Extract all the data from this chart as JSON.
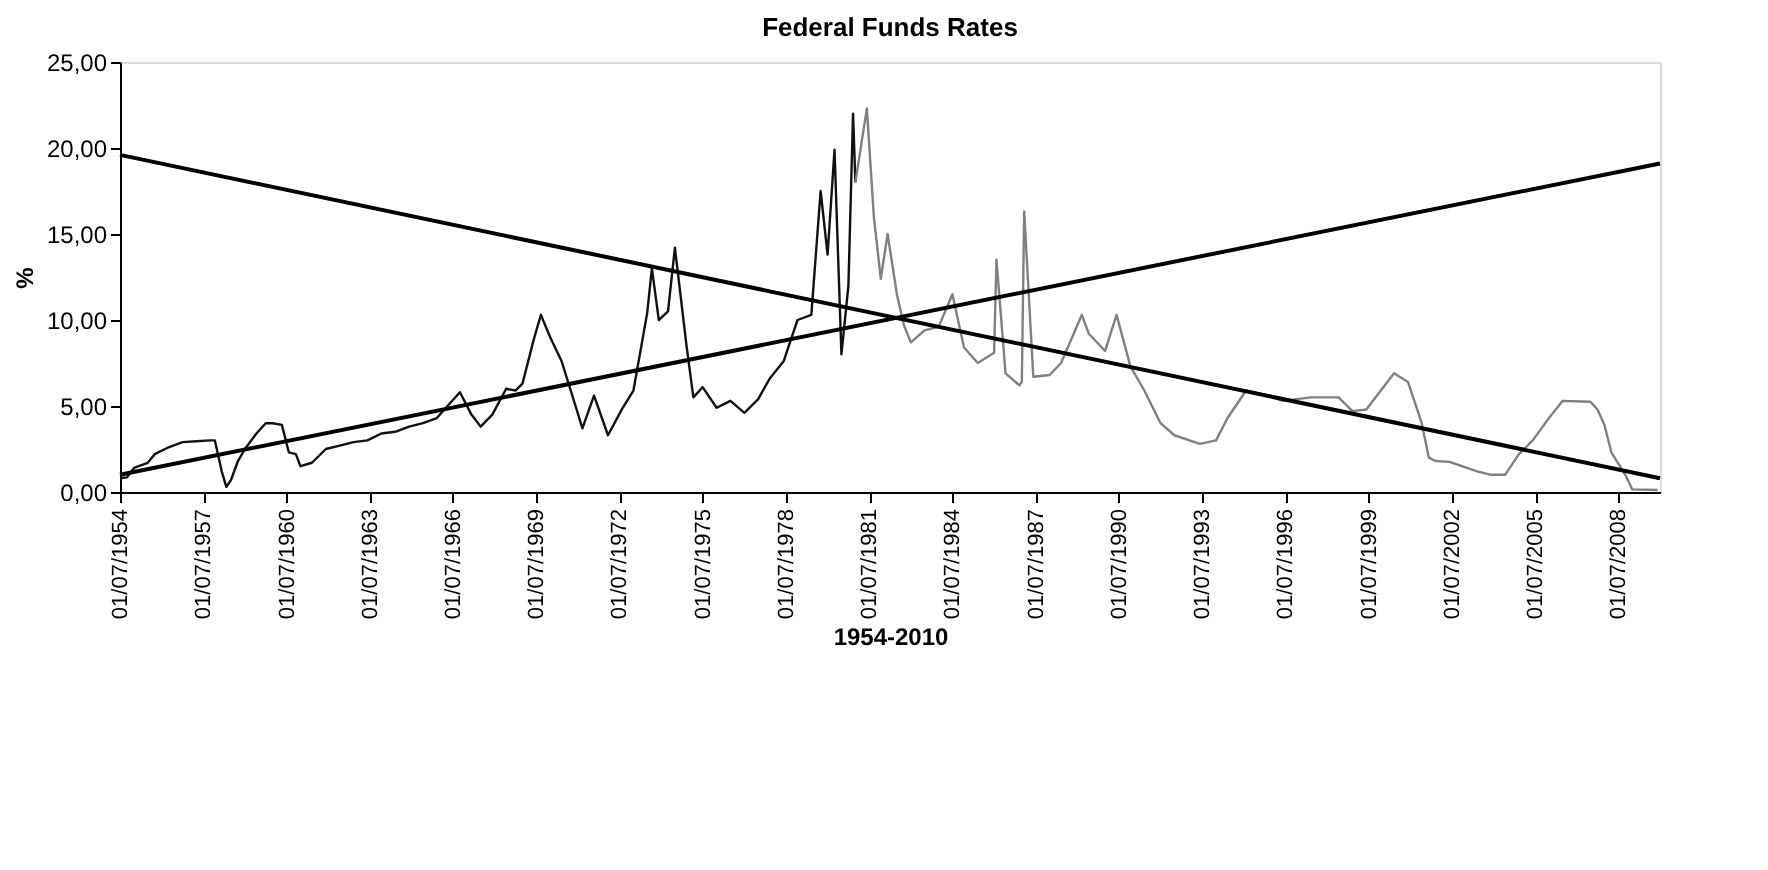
{
  "chart_data": {
    "type": "line",
    "title": "Federal Funds Rates",
    "xlabel": "1954-2010",
    "ylabel": "%",
    "xlim": [
      "1954-07-01",
      "2010-01-01"
    ],
    "xticks": [
      {
        "value": "1954-07-01",
        "label": "01/07/1954"
      },
      {
        "value": "1957-07-01",
        "label": "01/07/1957"
      },
      {
        "value": "1960-07-01",
        "label": "01/07/1960"
      },
      {
        "value": "1963-07-01",
        "label": "01/07/1963"
      },
      {
        "value": "1966-07-01",
        "label": "01/07/1966"
      },
      {
        "value": "1969-07-01",
        "label": "01/07/1969"
      },
      {
        "value": "1972-07-01",
        "label": "01/07/1972"
      },
      {
        "value": "1975-07-01",
        "label": "01/07/1975"
      },
      {
        "value": "1978-07-01",
        "label": "01/07/1978"
      },
      {
        "value": "1981-07-01",
        "label": "01/07/1981"
      },
      {
        "value": "1984-07-01",
        "label": "01/07/1984"
      },
      {
        "value": "1987-07-01",
        "label": "01/07/1987"
      },
      {
        "value": "1990-07-01",
        "label": "01/07/1990"
      },
      {
        "value": "1993-07-01",
        "label": "01/07/1993"
      },
      {
        "value": "1996-07-01",
        "label": "01/07/1996"
      },
      {
        "value": "1999-07-01",
        "label": "01/07/1999"
      },
      {
        "value": "2002-07-01",
        "label": "01/07/2002"
      },
      {
        "value": "2005-07-01",
        "label": "01/07/2005"
      },
      {
        "value": "2008-07-01",
        "label": "01/07/2008"
      }
    ],
    "ylim": [
      0,
      25
    ],
    "yticks": [
      {
        "value": 0,
        "label": "0,00"
      },
      {
        "value": 5,
        "label": "5,00"
      },
      {
        "value": 10,
        "label": "10,00"
      },
      {
        "value": 15,
        "label": "15,00"
      },
      {
        "value": 20,
        "label": "20,00"
      },
      {
        "value": 25,
        "label": "25,00"
      }
    ],
    "grid": false,
    "marker": "none",
    "line_style": "solid",
    "series": [
      {
        "color": "#111111",
        "x": [
          "1954-07-01",
          "1954-10-01",
          "1955-01-01",
          "1955-07-01",
          "1955-10-01",
          "1956-04-01",
          "1956-10-01",
          "1957-04-01",
          "1957-10-01",
          "1957-12-01",
          "1958-03-01",
          "1958-05-01",
          "1958-07-01",
          "1958-10-01",
          "1959-01-01",
          "1959-06-01",
          "1959-10-01",
          "1960-01-01",
          "1960-05-01",
          "1960-08-01",
          "1960-11-01",
          "1961-01-01",
          "1961-06-01",
          "1961-12-01",
          "1962-06-01",
          "1962-12-01",
          "1963-06-01",
          "1963-12-01",
          "1964-06-01",
          "1964-12-01",
          "1965-06-01",
          "1965-12-01",
          "1966-06-01",
          "1966-10-01",
          "1967-03-01",
          "1967-07-01",
          "1967-12-01",
          "1968-06-01",
          "1968-10-01",
          "1969-01-01",
          "1969-06-01",
          "1969-09-01",
          "1970-01-01",
          "1970-06-01",
          "1970-12-01",
          "1971-03-01",
          "1971-08-01",
          "1972-02-01",
          "1972-08-01",
          "1973-01-01",
          "1973-07-01",
          "1973-09-01",
          "1973-12-01",
          "1974-04-01",
          "1974-07-01",
          "1974-12-01",
          "1975-03-01",
          "1975-07-01",
          "1976-01-01",
          "1976-07-01",
          "1977-01-01",
          "1977-07-01",
          "1977-12-01",
          "1978-06-01",
          "1978-12-01",
          "1979-06-01",
          "1979-10-01",
          "1980-01-01",
          "1980-04-01",
          "1980-07-01",
          "1980-10-01",
          "1980-12-01",
          "1981-01-01"
        ],
        "values": [
          0.8,
          0.85,
          1.4,
          1.7,
          2.2,
          2.6,
          2.9,
          2.95,
          3.0,
          3.0,
          1.2,
          0.3,
          0.7,
          1.8,
          2.5,
          3.4,
          4.0,
          4.0,
          3.9,
          2.3,
          2.2,
          1.5,
          1.7,
          2.5,
          2.7,
          2.9,
          3.0,
          3.4,
          3.5,
          3.8,
          4.0,
          4.3,
          5.2,
          5.8,
          4.5,
          3.8,
          4.5,
          6.0,
          5.9,
          6.3,
          8.9,
          10.3,
          9.0,
          7.6,
          5.0,
          3.7,
          5.6,
          3.3,
          4.8,
          5.9,
          10.4,
          13.0,
          10.0,
          10.5,
          14.2,
          8.5,
          5.5,
          6.1,
          4.9,
          5.3,
          4.6,
          5.4,
          6.6,
          7.6,
          10.0,
          10.3,
          17.5,
          13.8,
          19.9,
          8.0,
          12.0,
          22.0,
          18.0
        ]
      },
      {
        "color": "#808080",
        "x": [
          "1981-01-01",
          "1981-06-01",
          "1981-09-01",
          "1981-12-01",
          "1982-03-01",
          "1982-07-01",
          "1982-10-01",
          "1983-01-01",
          "1983-07-01",
          "1984-01-01",
          "1984-07-01",
          "1984-12-01",
          "1985-06-01",
          "1986-01-01",
          "1986-02-01",
          "1986-06-01",
          "1986-12-01",
          "1987-01-01",
          "1987-02-01",
          "1987-06-01",
          "1988-01-01",
          "1988-06-01",
          "1989-03-01",
          "1989-06-01",
          "1990-01-01",
          "1990-06-01",
          "1990-12-01",
          "1991-06-01",
          "1992-01-01",
          "1992-07-01",
          "1993-06-01",
          "1994-01-01",
          "1994-06-01",
          "1995-02-01",
          "1995-12-01",
          "1996-06-01",
          "1997-06-01",
          "1998-06-01",
          "1998-12-01",
          "1999-06-01",
          "2000-06-01",
          "2000-12-01",
          "2001-06-01",
          "2001-09-01",
          "2001-12-01",
          "2002-06-01",
          "2003-06-01",
          "2003-12-01",
          "2004-06-01",
          "2004-12-01",
          "2005-06-01",
          "2006-01-01",
          "2006-07-01",
          "2007-07-01",
          "2007-10-01",
          "2008-01-01",
          "2008-04-01",
          "2008-10-01",
          "2009-01-01",
          "2009-12-01"
        ],
        "values": [
          18.0,
          22.3,
          16.0,
          12.4,
          15.0,
          11.5,
          9.7,
          8.7,
          9.4,
          9.6,
          11.5,
          8.4,
          7.5,
          8.1,
          13.5,
          6.9,
          6.2,
          6.4,
          16.3,
          6.7,
          6.8,
          7.5,
          10.3,
          9.2,
          8.2,
          10.3,
          7.3,
          5.9,
          4.0,
          3.3,
          2.8,
          3.0,
          4.3,
          5.9,
          5.6,
          5.3,
          5.5,
          5.5,
          4.7,
          4.8,
          6.9,
          6.4,
          4.0,
          2.0,
          1.8,
          1.75,
          1.2,
          1.0,
          1.0,
          2.2,
          3.0,
          4.3,
          5.3,
          5.25,
          4.8,
          3.9,
          2.3,
          1.0,
          0.15,
          0.12
        ]
      },
      {
        "color": "#000000",
        "x": [
          "1954-07-01",
          "2010-01-01"
        ],
        "values": [
          1.0,
          19.1
        ]
      },
      {
        "color": "#000000",
        "x": [
          "1954-07-01",
          "2010-01-01"
        ],
        "values": [
          19.6,
          0.8
        ]
      }
    ]
  }
}
